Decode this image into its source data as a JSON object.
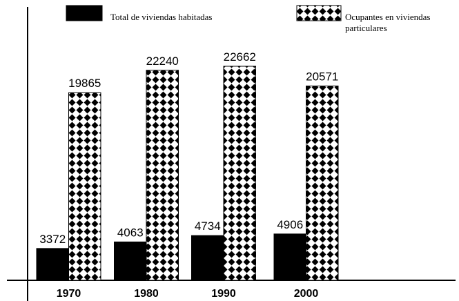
{
  "chart_data": {
    "type": "bar",
    "categories": [
      "1970",
      "1980",
      "1990",
      "2000"
    ],
    "series": [
      {
        "name": "Total de viviendas habitadas",
        "color": "#000000",
        "values": [
          3372,
          4063,
          4734,
          4906
        ]
      },
      {
        "name": "Ocupantes en viviendas particulares",
        "color": "#000000",
        "hatch": "diamonds",
        "values": [
          19865,
          22240,
          22662,
          20571
        ]
      }
    ],
    "ylim": [
      0,
      25000
    ]
  }
}
